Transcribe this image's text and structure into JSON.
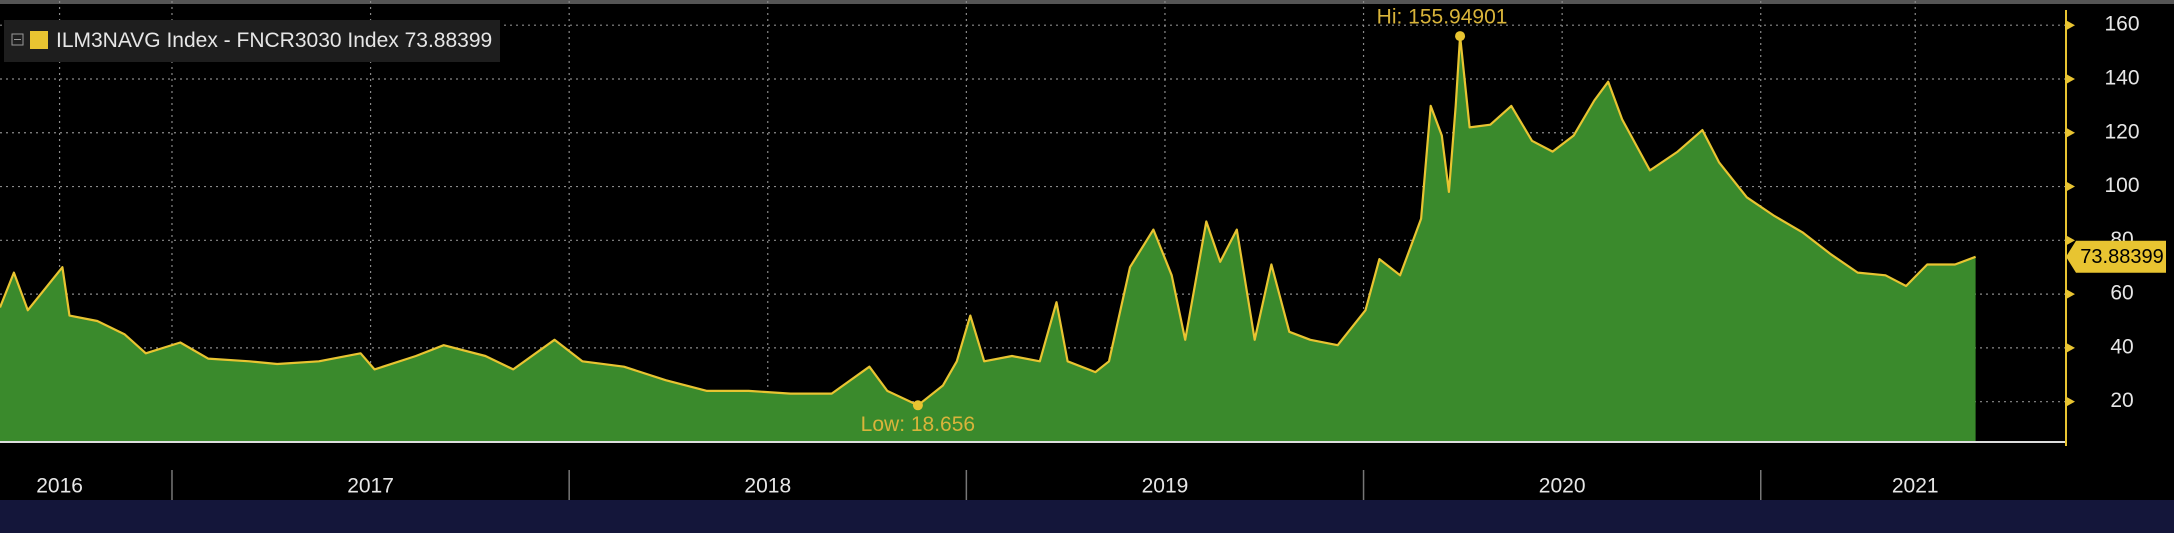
{
  "chart_data": {
    "type": "area",
    "legend_label": "ILM3NAVG Index - FNCR3030 Index",
    "series": [
      {
        "name": "ILM3NAVG Index - FNCR3030 Index",
        "color": "#e8c431",
        "fill": "#3a8a2c",
        "x": [
          2016.567,
          2016.602,
          2016.637,
          2016.724,
          2016.742,
          2016.812,
          2016.881,
          2016.934,
          2017.021,
          2017.091,
          2017.195,
          2017.265,
          2017.37,
          2017.475,
          2017.51,
          2017.614,
          2017.684,
          2017.789,
          2017.859,
          2017.963,
          2018.033,
          2018.138,
          2018.243,
          2018.347,
          2018.452,
          2018.557,
          2018.661,
          2018.756,
          2018.801,
          2018.878,
          2018.941,
          2018.976,
          2019.01,
          2019.045,
          2019.115,
          2019.185,
          2019.227,
          2019.255,
          2019.325,
          2019.359,
          2019.412,
          2019.471,
          2019.517,
          2019.551,
          2019.604,
          2019.639,
          2019.681,
          2019.726,
          2019.768,
          2019.813,
          2019.866,
          2019.935,
          2020.005,
          2020.04,
          2020.092,
          2020.145,
          2020.169,
          2020.197,
          2020.215,
          2020.232,
          2020.243,
          2020.267,
          2020.319,
          2020.372,
          2020.424,
          2020.476,
          2020.529,
          2020.581,
          2020.616,
          2020.651,
          2020.721,
          2020.791,
          2020.853,
          2020.895,
          2020.965,
          2021.035,
          2021.105,
          2021.175,
          2021.244,
          2021.314,
          2021.366,
          2021.419,
          2021.489,
          2021.541
        ],
        "values": [
          55,
          68,
          54,
          70,
          52,
          50,
          45,
          38,
          42,
          36,
          35,
          34,
          35,
          38,
          32,
          37,
          41,
          37,
          32,
          43,
          35,
          33,
          28,
          24,
          24,
          23,
          23,
          33,
          24,
          18.656,
          26,
          35,
          52,
          35,
          37,
          35,
          57,
          35,
          31,
          35,
          70,
          84,
          67,
          43,
          87,
          72,
          84,
          43,
          71,
          46,
          43,
          41,
          54,
          73,
          67,
          88,
          130,
          119,
          98,
          130,
          155.94901,
          122,
          123,
          130,
          117,
          113,
          119,
          132,
          139,
          125,
          106,
          113,
          121,
          109,
          96,
          89,
          83,
          75,
          68,
          67,
          63,
          71,
          71,
          73.88399
        ]
      }
    ],
    "annotations": [
      {
        "text": "Hi: 155.94901",
        "x": 2020.243,
        "y": 155.94901
      },
      {
        "text": "Low: 18.656",
        "x": 2018.878,
        "y": 18.656
      }
    ],
    "xlim": [
      2016.567,
      2021.761
    ],
    "xticks": [
      {
        "value": 2016.717,
        "label": "2016"
      },
      {
        "value": 2017.5,
        "label": "2017"
      },
      {
        "value": 2018.5,
        "label": "2018"
      },
      {
        "value": 2019.5,
        "label": "2019"
      },
      {
        "value": 2020.5,
        "label": "2020"
      },
      {
        "value": 2021.389,
        "label": "2021"
      }
    ],
    "ylim": [
      5,
      169
    ],
    "yticks": [
      20,
      40,
      60,
      80,
      100,
      120,
      140,
      160
    ],
    "grid": true
  }
}
